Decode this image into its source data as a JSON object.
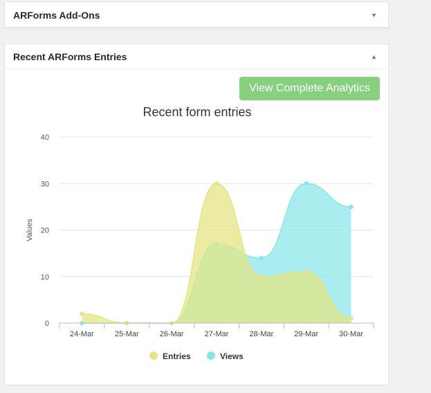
{
  "addons_panel": {
    "title": "ARForms Add-Ons",
    "toggle_icon": "triangle-down-icon"
  },
  "entries_panel": {
    "title": "Recent ARForms Entries",
    "toggle_icon": "triangle-up-icon",
    "analytics_button": "View Complete Analytics"
  },
  "colors": {
    "entries": "#e3e685",
    "views": "#85e6e9",
    "button": "#87d07f"
  },
  "chart_data": {
    "type": "area",
    "title": "Recent form entries",
    "ylabel": "Values",
    "xlabel": "",
    "ylim": [
      0,
      40
    ],
    "yticks": [
      "0",
      "10",
      "20",
      "30",
      "40"
    ],
    "categories": [
      "24-Mar",
      "25-Mar",
      "26-Mar",
      "27-Mar",
      "28-Mar",
      "29-Mar",
      "30-Mar"
    ],
    "series": [
      {
        "name": "Entries",
        "values": [
          2,
          0,
          0,
          30,
          10,
          11,
          1
        ]
      },
      {
        "name": "Views",
        "values": [
          0,
          0,
          0,
          17,
          14,
          30,
          25
        ]
      }
    ],
    "legend_position": "bottom",
    "grid": true
  }
}
